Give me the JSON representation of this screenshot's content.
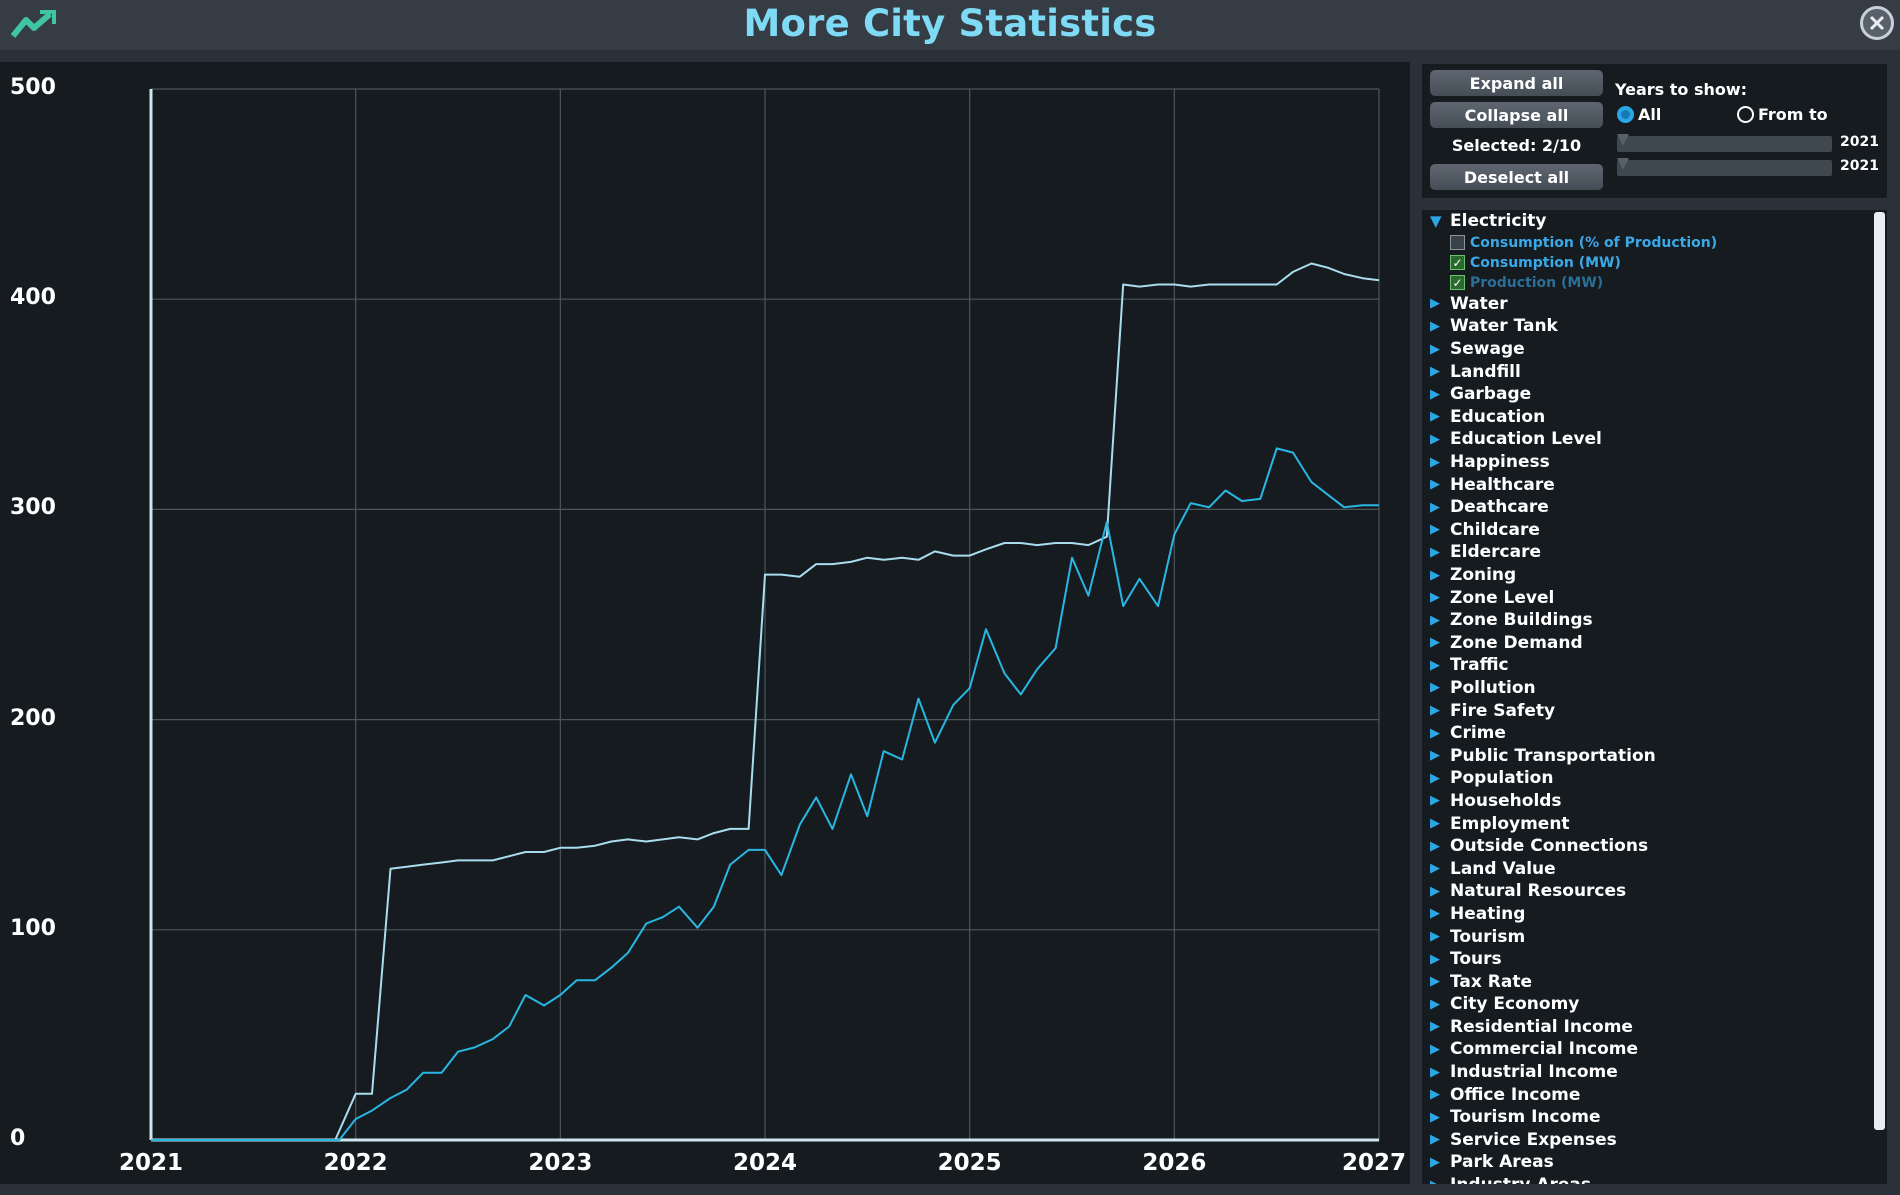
{
  "window": {
    "title": "More City Statistics",
    "app_icon": "trend-line-icon",
    "close_icon": "close-icon"
  },
  "chart_data": {
    "type": "line",
    "title": "",
    "xlabel": "",
    "ylabel": "",
    "xlim": [
      2021,
      2027
    ],
    "ylim": [
      0,
      500
    ],
    "x_ticks": [
      "2021",
      "2022",
      "2023",
      "2024",
      "2025",
      "2026",
      "2027"
    ],
    "y_ticks": [
      "0",
      "100",
      "200",
      "300",
      "400",
      "500"
    ],
    "grid": true,
    "series": [
      {
        "name": "Production (MW)",
        "color": "#a9ddee",
        "x": [
          2021.0,
          2021.9,
          2022.0,
          2022.08,
          2022.17,
          2022.25,
          2022.33,
          2022.42,
          2022.5,
          2022.58,
          2022.67,
          2022.75,
          2022.83,
          2022.92,
          2023.0,
          2023.08,
          2023.17,
          2023.25,
          2023.33,
          2023.42,
          2023.5,
          2023.58,
          2023.67,
          2023.75,
          2023.83,
          2023.92,
          2024.0,
          2024.08,
          2024.17,
          2024.25,
          2024.33,
          2024.42,
          2024.5,
          2024.58,
          2024.67,
          2024.75,
          2024.83,
          2024.92,
          2025.0,
          2025.08,
          2025.17,
          2025.25,
          2025.33,
          2025.42,
          2025.5,
          2025.58,
          2025.67,
          2025.75,
          2025.83,
          2025.92,
          2026.0,
          2026.08,
          2026.17,
          2026.25,
          2026.33,
          2026.42,
          2026.5,
          2026.58,
          2026.67,
          2026.75,
          2026.83,
          2026.92,
          2027.0
        ],
        "values": [
          0,
          0,
          22,
          22,
          129,
          130,
          131,
          132,
          133,
          133,
          133,
          135,
          137,
          137,
          139,
          139,
          140,
          142,
          143,
          142,
          143,
          144,
          143,
          146,
          148,
          148,
          269,
          269,
          268,
          274,
          274,
          275,
          277,
          276,
          277,
          276,
          280,
          278,
          278,
          281,
          284,
          284,
          283,
          284,
          284,
          283,
          287,
          407,
          406,
          407,
          407,
          406,
          407,
          407,
          407,
          407,
          407,
          413,
          417,
          415,
          412,
          410,
          409
        ]
      },
      {
        "name": "Consumption (MW)",
        "color": "#28b7e3",
        "x": [
          2021.0,
          2021.92,
          2022.0,
          2022.08,
          2022.17,
          2022.25,
          2022.33,
          2022.42,
          2022.5,
          2022.58,
          2022.67,
          2022.75,
          2022.83,
          2022.92,
          2023.0,
          2023.08,
          2023.17,
          2023.25,
          2023.33,
          2023.42,
          2023.5,
          2023.58,
          2023.67,
          2023.75,
          2023.83,
          2023.92,
          2024.0,
          2024.08,
          2024.17,
          2024.25,
          2024.33,
          2024.42,
          2024.5,
          2024.58,
          2024.67,
          2024.75,
          2024.83,
          2024.92,
          2025.0,
          2025.08,
          2025.17,
          2025.25,
          2025.33,
          2025.42,
          2025.5,
          2025.58,
          2025.67,
          2025.75,
          2025.83,
          2025.92,
          2026.0,
          2026.08,
          2026.17,
          2026.25,
          2026.33,
          2026.42,
          2026.5,
          2026.58,
          2026.67,
          2026.75,
          2026.83,
          2026.92,
          2027.0
        ],
        "values": [
          0,
          0,
          10,
          14,
          20,
          24,
          32,
          32,
          42,
          44,
          48,
          54,
          69,
          64,
          69,
          76,
          76,
          82,
          89,
          103,
          106,
          111,
          101,
          111,
          131,
          138,
          138,
          126,
          150,
          163,
          148,
          174,
          154,
          185,
          181,
          210,
          189,
          207,
          215,
          243,
          222,
          212,
          224,
          234,
          277,
          259,
          294,
          254,
          267,
          254,
          288,
          303,
          301,
          309,
          304,
          305,
          329,
          327,
          313,
          307,
          301,
          302,
          302
        ]
      }
    ]
  },
  "controls": {
    "expand_all": "Expand all",
    "collapse_all": "Collapse all",
    "selected": "Selected: 2/10",
    "deselect_all": "Deselect all",
    "years_label": "Years to show:",
    "radio_all": "All",
    "radio_from_to": "From to",
    "radio_selected": "All",
    "slider_from_value": "2021",
    "slider_to_value": "2021"
  },
  "tree": {
    "expanded": {
      "label": "Electricity",
      "items": [
        {
          "label": "Consumption (% of Production)",
          "checked": false,
          "color": "#3aa9e8"
        },
        {
          "label": "Consumption (MW)",
          "checked": true,
          "color": "#3aa9e8"
        },
        {
          "label": "Production (MW)",
          "checked": true,
          "color": "#2a6f96"
        }
      ]
    },
    "categories": [
      "Water",
      "Water Tank",
      "Sewage",
      "Landfill",
      "Garbage",
      "Education",
      "Education Level",
      "Happiness",
      "Healthcare",
      "Deathcare",
      "Childcare",
      "Eldercare",
      "Zoning",
      "Zone Level",
      "Zone Buildings",
      "Zone Demand",
      "Traffic",
      "Pollution",
      "Fire Safety",
      "Crime",
      "Public Transportation",
      "Population",
      "Households",
      "Employment",
      "Outside Connections",
      "Land Value",
      "Natural Resources",
      "Heating",
      "Tourism",
      "Tours",
      "Tax Rate",
      "City Economy",
      "Residential Income",
      "Commercial Income",
      "Industrial Income",
      "Office Income",
      "Tourism Income",
      "Service Expenses",
      "Park Areas",
      "Industry Areas"
    ]
  }
}
